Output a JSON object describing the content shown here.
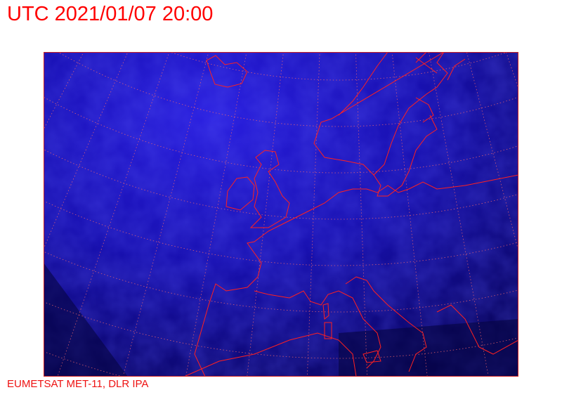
{
  "header": {
    "title": "UTC 2021/01/07 20:00"
  },
  "footer": {
    "credit": "EUMETSAT MET-11, DLR IPA"
  },
  "map": {
    "imagery": "satellite infrared, blue colour scale",
    "coastline_color": "#ff2020",
    "graticule_color": "#ff6a6a",
    "background_color": "#1a0fb0"
  }
}
